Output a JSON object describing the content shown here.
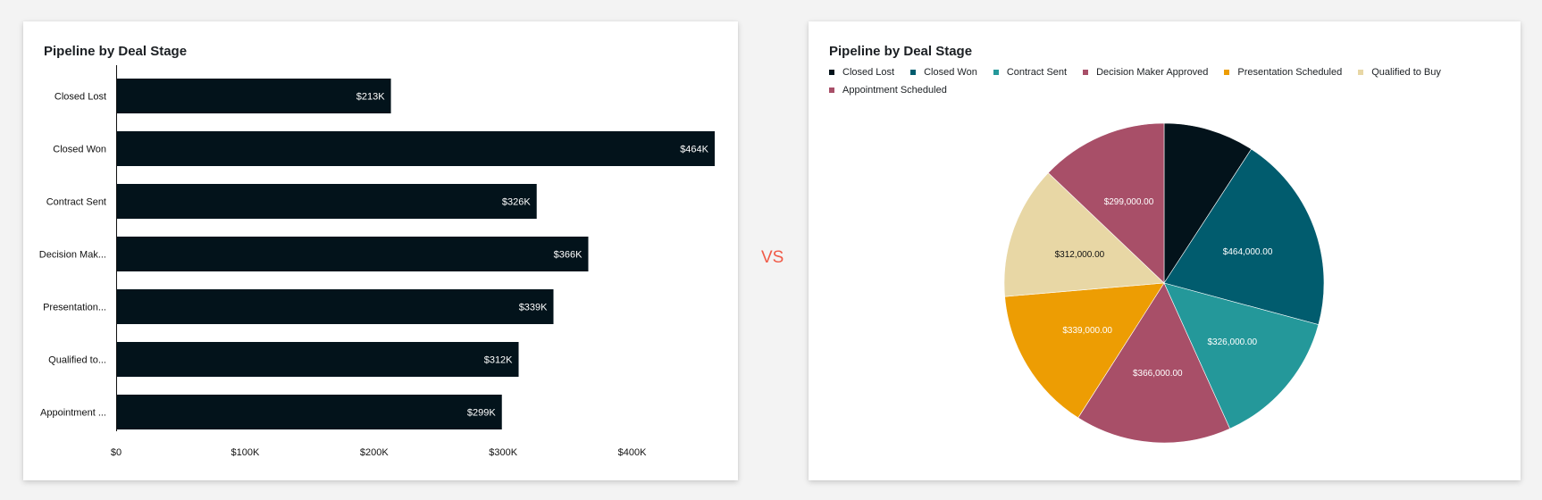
{
  "vs_label": "VS",
  "chart_data": [
    {
      "type": "bar",
      "orientation": "horizontal",
      "title": "Pipeline by Deal Stage",
      "categories": [
        "Closed Lost",
        "Closed Won",
        "Contract Sent",
        "Decision Mak...",
        "Presentation...",
        "Qualified to...",
        "Appointment ..."
      ],
      "values": [
        213000,
        464000,
        326000,
        366000,
        339000,
        312000,
        299000
      ],
      "value_labels": [
        "$213K",
        "$464K",
        "$326K",
        "$366K",
        "$339K",
        "$312K",
        "$299K"
      ],
      "xlim": [
        0,
        464000
      ],
      "x_ticks": [
        0,
        100000,
        200000,
        300000,
        400000
      ],
      "x_tick_labels": [
        "$0",
        "$100K",
        "$200K",
        "$300K",
        "$400K"
      ],
      "bar_color": "#03131b",
      "xlabel": "",
      "ylabel": "",
      "grid": false
    },
    {
      "type": "pie",
      "title": "Pipeline by Deal Stage",
      "legend_position": "top",
      "categories": [
        "Closed Lost",
        "Closed Won",
        "Contract Sent",
        "Decision Maker Approved",
        "Presentation Scheduled",
        "Qualified to Buy",
        "Appointment Scheduled"
      ],
      "values": [
        213000,
        464000,
        326000,
        366000,
        339000,
        312000,
        299000
      ],
      "value_labels": [
        "",
        "$464,000.00",
        "$326,000.00",
        "$366,000.00",
        "$339,000.00",
        "$312,000.00",
        "$299,000.00"
      ],
      "colors": [
        "#03131b",
        "#015c6e",
        "#24989a",
        "#a84f68",
        "#ed9d03",
        "#e8d7a5",
        "#a84f68"
      ],
      "label_colors": [
        "#ffffff",
        "#ffffff",
        "#ffffff",
        "#ffffff",
        "#ffffff",
        "#111111",
        "#ffffff"
      ]
    }
  ]
}
